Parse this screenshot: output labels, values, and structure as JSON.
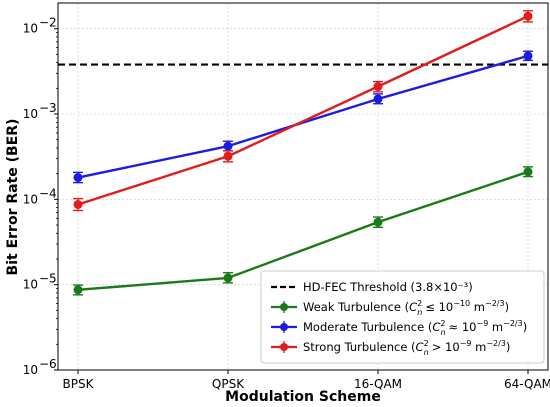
{
  "chart_data": {
    "type": "line",
    "xlabel": "Modulation Scheme",
    "ylabel": "Bit Error Rate (BER)",
    "categories": [
      "BPSK",
      "QPSK",
      "16-QAM",
      "64-QAM"
    ],
    "y_scale": "log",
    "ylim": [
      1e-06,
      0.02
    ],
    "y_ticks": [
      {
        "value": 1e-06,
        "mantissa": "10",
        "exp": "−6"
      },
      {
        "value": 1e-05,
        "mantissa": "10",
        "exp": "−5"
      },
      {
        "value": 0.0001,
        "mantissa": "10",
        "exp": "−4"
      },
      {
        "value": 0.001,
        "mantissa": "10",
        "exp": "−3"
      },
      {
        "value": 0.01,
        "mantissa": "10",
        "exp": "−2"
      }
    ],
    "grid": true,
    "legend_position": "lower-right",
    "threshold": {
      "name": "HD-FEC Threshold (3.8×10⁻³)",
      "value": 0.0038,
      "color": "#000000",
      "style": "dashed"
    },
    "series": [
      {
        "key": "weak",
        "legend_prefix": "Weak Turbulence (",
        "legend_relation": "≤ 10",
        "legend_exp": "−10",
        "legend_unit": " m",
        "legend_unit_exp": "−2/3",
        "legend_suffix": ")",
        "color": "#1a7a1a",
        "values": [
          8.7e-06,
          1.2e-05,
          5.4e-05,
          0.00021
        ],
        "err_low": [
          7.6e-06,
          1.05e-05,
          4.7e-05,
          0.000185
        ],
        "err_high": [
          9.9e-06,
          1.38e-05,
          6.2e-05,
          0.00024
        ]
      },
      {
        "key": "moderate",
        "legend_prefix": "Moderate Turbulence (",
        "legend_relation": "≈ 10",
        "legend_exp": "−9",
        "legend_unit": " m",
        "legend_unit_exp": "−2/3",
        "legend_suffix": ")",
        "color": "#1c1ce0",
        "values": [
          0.00018,
          0.00042,
          0.0015,
          0.0048
        ],
        "err_low": [
          0.000157,
          0.00037,
          0.00132,
          0.00425
        ],
        "err_high": [
          0.000207,
          0.00048,
          0.00172,
          0.00545
        ]
      },
      {
        "key": "strong",
        "legend_prefix": "Strong Turbulence (",
        "legend_relation": "> 10",
        "legend_exp": "−9",
        "legend_unit": " m",
        "legend_unit_exp": "−2/3",
        "legend_suffix": ")",
        "color": "#e01c1c",
        "values": [
          8.7e-05,
          0.00032,
          0.0021,
          0.014
        ],
        "err_low": [
          7.4e-05,
          0.000275,
          0.00182,
          0.012
        ],
        "err_high": [
          0.000102,
          0.00037,
          0.0024,
          0.0162
        ]
      }
    ]
  }
}
